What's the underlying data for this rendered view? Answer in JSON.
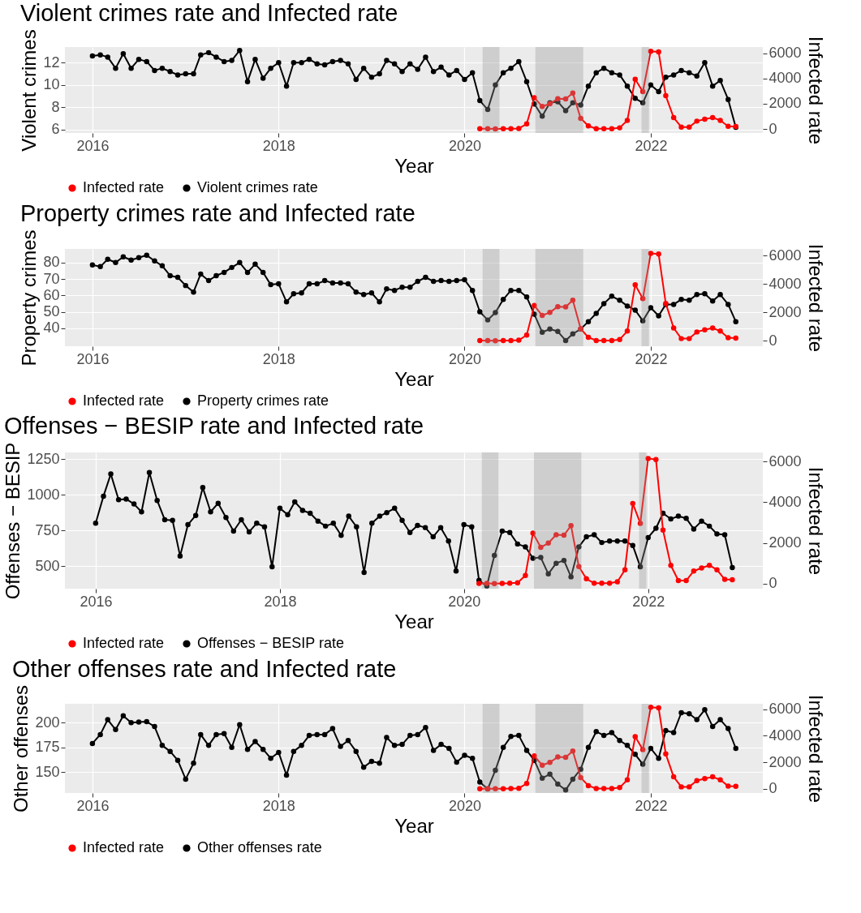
{
  "chart_data": [
    {
      "type": "line",
      "title": "Violent crimes rate and Infected rate",
      "xlabel": "Year",
      "ylabel": "Violent crimes",
      "y2label": "Infected rate",
      "x": [
        "2016-01",
        "2016-02",
        "2016-03",
        "2016-04",
        "2016-05",
        "2016-06",
        "2016-07",
        "2016-08",
        "2016-09",
        "2016-10",
        "2016-11",
        "2016-12",
        "2017-01",
        "2017-02",
        "2017-03",
        "2017-04",
        "2017-05",
        "2017-06",
        "2017-07",
        "2017-08",
        "2017-09",
        "2017-10",
        "2017-11",
        "2017-12",
        "2018-01",
        "2018-02",
        "2018-03",
        "2018-04",
        "2018-05",
        "2018-06",
        "2018-07",
        "2018-08",
        "2018-09",
        "2018-10",
        "2018-11",
        "2018-12",
        "2019-01",
        "2019-02",
        "2019-03",
        "2019-04",
        "2019-05",
        "2019-06",
        "2019-07",
        "2019-08",
        "2019-09",
        "2019-10",
        "2019-11",
        "2019-12",
        "2020-01",
        "2020-02",
        "2020-03",
        "2020-04",
        "2020-05",
        "2020-06",
        "2020-07",
        "2020-08",
        "2020-09",
        "2020-10",
        "2020-11",
        "2020-12",
        "2021-01",
        "2021-02",
        "2021-03",
        "2021-04",
        "2021-05",
        "2021-06",
        "2021-07",
        "2021-08",
        "2021-09",
        "2021-10",
        "2021-11",
        "2021-12",
        "2022-01",
        "2022-02",
        "2022-03",
        "2022-04",
        "2022-05",
        "2022-06",
        "2022-07",
        "2022-08",
        "2022-09",
        "2022-10",
        "2022-11",
        "2022-12"
      ],
      "series": [
        {
          "name": "Infected rate",
          "color": "#ff0000",
          "axis": "y2",
          "x": [
            "2020-03",
            "2020-04",
            "2020-05",
            "2020-06",
            "2020-07",
            "2020-08",
            "2020-09",
            "2020-10",
            "2020-11",
            "2020-12",
            "2021-01",
            "2021-02",
            "2021-03",
            "2021-04",
            "2021-05",
            "2021-06",
            "2021-07",
            "2021-08",
            "2021-09",
            "2021-10",
            "2021-11",
            "2021-12",
            "2022-01",
            "2022-02",
            "2022-03",
            "2022-04",
            "2022-05",
            "2022-06",
            "2022-07",
            "2022-08",
            "2022-09",
            "2022-10",
            "2022-11",
            "2022-12"
          ],
          "values": [
            10,
            10,
            0,
            10,
            20,
            40,
            400,
            2480,
            1780,
            1990,
            2400,
            2380,
            2850,
            840,
            240,
            20,
            20,
            20,
            90,
            680,
            3940,
            2960,
            6150,
            6100,
            2630,
            900,
            150,
            150,
            620,
            770,
            900,
            680,
            210,
            190
          ]
        },
        {
          "name": "Violent crimes rate",
          "color": "#000000",
          "values": [
            12.6,
            12.7,
            12.5,
            11.5,
            12.8,
            11.5,
            12.3,
            12.1,
            11.3,
            11.5,
            11.2,
            10.9,
            11.0,
            11.0,
            12.7,
            12.9,
            12.5,
            12.1,
            12.2,
            13.1,
            10.3,
            12.3,
            10.6,
            11.5,
            12.0,
            9.9,
            12.0,
            12.0,
            12.3,
            11.9,
            11.8,
            12.1,
            12.2,
            11.9,
            10.5,
            11.5,
            10.7,
            11.0,
            12.2,
            11.9,
            11.2,
            11.9,
            11.4,
            12.5,
            11.2,
            11.6,
            10.9,
            11.3,
            10.5,
            11.1,
            8.6,
            7.8,
            10.0,
            11.1,
            11.5,
            12.1,
            10.3,
            8.3,
            7.2,
            8.4,
            8.5,
            7.7,
            8.4,
            8.2,
            9.9,
            11.1,
            11.5,
            11.1,
            10.9,
            9.9,
            8.8,
            8.4,
            10.0,
            9.4,
            10.7,
            10.9,
            11.3,
            11.1,
            10.8,
            12.0,
            9.9,
            10.4,
            8.7,
            6.2
          ]
        }
      ],
      "xlim": [
        "2015-09-15",
        "2023-03-17"
      ],
      "xticks": [
        "2016",
        "2018",
        "2020",
        "2022"
      ],
      "ylim": [
        5.7,
        13.4
      ],
      "yticks": [
        6,
        8,
        10,
        12
      ],
      "y2lim": [
        -320,
        6490
      ],
      "y2ticks": [
        0,
        2000,
        4000,
        6000
      ],
      "bands": [
        {
          "axis": "x",
          "from": "2020-03-12",
          "to": "2020-05-17"
        },
        {
          "axis": "x",
          "from": "2020-10-05",
          "to": "2021-04-11"
        },
        {
          "axis": "x",
          "from": "2021-11-26",
          "to": "2021-12-25"
        }
      ],
      "grid": true,
      "legend": "bottom",
      "marker": "circle",
      "line_style": "solid"
    },
    {
      "type": "line",
      "title": "Property crimes rate and Infected rate",
      "xlabel": "Year",
      "ylabel": "Property crimes",
      "y2label": "Infected rate",
      "x": [
        "2016-01",
        "2016-02",
        "2016-03",
        "2016-04",
        "2016-05",
        "2016-06",
        "2016-07",
        "2016-08",
        "2016-09",
        "2016-10",
        "2016-11",
        "2016-12",
        "2017-01",
        "2017-02",
        "2017-03",
        "2017-04",
        "2017-05",
        "2017-06",
        "2017-07",
        "2017-08",
        "2017-09",
        "2017-10",
        "2017-11",
        "2017-12",
        "2018-01",
        "2018-02",
        "2018-03",
        "2018-04",
        "2018-05",
        "2018-06",
        "2018-07",
        "2018-08",
        "2018-09",
        "2018-10",
        "2018-11",
        "2018-12",
        "2019-01",
        "2019-02",
        "2019-03",
        "2019-04",
        "2019-05",
        "2019-06",
        "2019-07",
        "2019-08",
        "2019-09",
        "2019-10",
        "2019-11",
        "2019-12",
        "2020-01",
        "2020-02",
        "2020-03",
        "2020-04",
        "2020-05",
        "2020-06",
        "2020-07",
        "2020-08",
        "2020-09",
        "2020-10",
        "2020-11",
        "2020-12",
        "2021-01",
        "2021-02",
        "2021-03",
        "2021-04",
        "2021-05",
        "2021-06",
        "2021-07",
        "2021-08",
        "2021-09",
        "2021-10",
        "2021-11",
        "2021-12",
        "2022-01",
        "2022-02",
        "2022-03",
        "2022-04",
        "2022-05",
        "2022-06",
        "2022-07",
        "2022-08",
        "2022-09",
        "2022-10",
        "2022-11",
        "2022-12"
      ],
      "series": [
        {
          "name": "Infected rate",
          "color": "#ff0000",
          "axis": "y2",
          "x": [
            "2020-03",
            "2020-04",
            "2020-05",
            "2020-06",
            "2020-07",
            "2020-08",
            "2020-09",
            "2020-10",
            "2020-11",
            "2020-12",
            "2021-01",
            "2021-02",
            "2021-03",
            "2021-04",
            "2021-05",
            "2021-06",
            "2021-07",
            "2021-08",
            "2021-09",
            "2021-10",
            "2021-11",
            "2021-12",
            "2022-01",
            "2022-02",
            "2022-03",
            "2022-04",
            "2022-05",
            "2022-06",
            "2022-07",
            "2022-08",
            "2022-09",
            "2022-10",
            "2022-11",
            "2022-12"
          ],
          "values": [
            10,
            10,
            0,
            10,
            20,
            40,
            400,
            2480,
            1780,
            1990,
            2400,
            2380,
            2850,
            840,
            240,
            20,
            20,
            20,
            90,
            680,
            3940,
            2960,
            6150,
            6100,
            2630,
            900,
            150,
            150,
            620,
            770,
            900,
            680,
            210,
            190
          ]
        },
        {
          "name": "Property crimes rate",
          "color": "#000000",
          "values": [
            78.5,
            77.5,
            82,
            80,
            83.5,
            81.5,
            83,
            84.5,
            81,
            78,
            72,
            71,
            66,
            62,
            73,
            69,
            72,
            74,
            77,
            80,
            74,
            79,
            74,
            66.5,
            67,
            56,
            61,
            61.5,
            67,
            67,
            69,
            67.5,
            67.5,
            67,
            62,
            60.5,
            61.5,
            56,
            64,
            63,
            65,
            65,
            68.5,
            71,
            68.5,
            69,
            68.5,
            69,
            69.5,
            63,
            50,
            45,
            49.5,
            57.5,
            63,
            63,
            59,
            48.5,
            37.5,
            39.5,
            38,
            32.5,
            36.5,
            39.5,
            44,
            49,
            55,
            59.5,
            57,
            53.5,
            51,
            44.5,
            52.5,
            47.5,
            54.5,
            54.5,
            57.5,
            57,
            60.5,
            61,
            56.5,
            60.5,
            54.5,
            44
          ]
        }
      ],
      "xlim": [
        "2015-09-15",
        "2023-03-17"
      ],
      "xticks": [
        "2016",
        "2018",
        "2020",
        "2022"
      ],
      "ylim": [
        29,
        88.3
      ],
      "yticks": [
        40,
        50,
        60,
        70,
        80
      ],
      "y2lim": [
        -385,
        6460
      ],
      "y2ticks": [
        0,
        2000,
        4000,
        6000
      ],
      "bands": [
        {
          "axis": "x",
          "from": "2020-03-12",
          "to": "2020-05-17"
        },
        {
          "axis": "x",
          "from": "2020-10-05",
          "to": "2021-04-11"
        },
        {
          "axis": "x",
          "from": "2021-11-26",
          "to": "2021-12-25"
        }
      ],
      "grid": true,
      "legend": "bottom",
      "marker": "circle",
      "line_style": "solid"
    },
    {
      "type": "line",
      "title": "Offenses − BESIP rate and Infected rate",
      "xlabel": "Year",
      "ylabel": "Offenses − BESIP",
      "y2label": "Infected rate",
      "x": [
        "2016-01",
        "2016-02",
        "2016-03",
        "2016-04",
        "2016-05",
        "2016-06",
        "2016-07",
        "2016-08",
        "2016-09",
        "2016-10",
        "2016-11",
        "2016-12",
        "2017-01",
        "2017-02",
        "2017-03",
        "2017-04",
        "2017-05",
        "2017-06",
        "2017-07",
        "2017-08",
        "2017-09",
        "2017-10",
        "2017-11",
        "2017-12",
        "2018-01",
        "2018-02",
        "2018-03",
        "2018-04",
        "2018-05",
        "2018-06",
        "2018-07",
        "2018-08",
        "2018-09",
        "2018-10",
        "2018-11",
        "2018-12",
        "2019-01",
        "2019-02",
        "2019-03",
        "2019-04",
        "2019-05",
        "2019-06",
        "2019-07",
        "2019-08",
        "2019-09",
        "2019-10",
        "2019-11",
        "2019-12",
        "2020-01",
        "2020-02",
        "2020-03",
        "2020-04",
        "2020-05",
        "2020-06",
        "2020-07",
        "2020-08",
        "2020-09",
        "2020-10",
        "2020-11",
        "2020-12",
        "2021-01",
        "2021-02",
        "2021-03",
        "2021-04",
        "2021-05",
        "2021-06",
        "2021-07",
        "2021-08",
        "2021-09",
        "2021-10",
        "2021-11",
        "2021-12",
        "2022-01",
        "2022-02",
        "2022-03",
        "2022-04",
        "2022-05",
        "2022-06",
        "2022-07",
        "2022-08",
        "2022-09",
        "2022-10",
        "2022-11",
        "2022-12"
      ],
      "series": [
        {
          "name": "Infected rate",
          "color": "#ff0000",
          "axis": "y2",
          "x": [
            "2020-03",
            "2020-04",
            "2020-05",
            "2020-06",
            "2020-07",
            "2020-08",
            "2020-09",
            "2020-10",
            "2020-11",
            "2020-12",
            "2021-01",
            "2021-02",
            "2021-03",
            "2021-04",
            "2021-05",
            "2021-06",
            "2021-07",
            "2021-08",
            "2021-09",
            "2021-10",
            "2021-11",
            "2021-12",
            "2022-01",
            "2022-02",
            "2022-03",
            "2022-04",
            "2022-05",
            "2022-06",
            "2022-07",
            "2022-08",
            "2022-09",
            "2022-10",
            "2022-11",
            "2022-12"
          ],
          "values": [
            10,
            10,
            0,
            10,
            20,
            40,
            400,
            2480,
            1780,
            1990,
            2400,
            2380,
            2850,
            840,
            240,
            20,
            20,
            20,
            90,
            680,
            3940,
            2960,
            6150,
            6100,
            2630,
            900,
            150,
            150,
            620,
            770,
            900,
            680,
            210,
            190
          ]
        },
        {
          "name": "Offenses − BESIP rate",
          "color": "#000000",
          "values": [
            800,
            990,
            1145,
            965,
            970,
            935,
            880,
            1155,
            960,
            825,
            820,
            570,
            790,
            855,
            1050,
            880,
            940,
            840,
            745,
            825,
            740,
            800,
            775,
            495,
            905,
            860,
            950,
            890,
            870,
            815,
            780,
            800,
            715,
            850,
            775,
            455,
            800,
            850,
            875,
            905,
            820,
            735,
            785,
            770,
            705,
            770,
            675,
            465,
            790,
            775,
            400,
            360,
            575,
            745,
            735,
            655,
            635,
            555,
            560,
            445,
            520,
            540,
            425,
            635,
            705,
            720,
            665,
            675,
            675,
            675,
            645,
            495,
            700,
            765,
            870,
            830,
            850,
            835,
            760,
            815,
            780,
            725,
            720,
            490
          ]
        }
      ],
      "xlim": [
        "2015-09-01",
        "2023-04-01"
      ],
      "xticks": [
        "2016",
        "2018",
        "2020",
        "2022"
      ],
      "ylim": [
        342,
        1296
      ],
      "yticks": [
        500,
        750,
        1000,
        1250
      ],
      "y2lim": [
        -247,
        6444
      ],
      "y2ticks": [
        0,
        2000,
        4000,
        6000
      ],
      "bands": [
        {
          "axis": "x",
          "from": "2020-03-12",
          "to": "2020-05-17"
        },
        {
          "axis": "x",
          "from": "2020-10-05",
          "to": "2021-04-11"
        },
        {
          "axis": "x",
          "from": "2021-11-26",
          "to": "2021-12-25"
        }
      ],
      "grid": true,
      "legend": "bottom",
      "marker": "circle",
      "line_style": "solid"
    },
    {
      "type": "line",
      "title": "Other offenses rate and Infected rate",
      "xlabel": "Year",
      "ylabel": "Other offenses",
      "y2label": "Infected rate",
      "x": [
        "2016-01",
        "2016-02",
        "2016-03",
        "2016-04",
        "2016-05",
        "2016-06",
        "2016-07",
        "2016-08",
        "2016-09",
        "2016-10",
        "2016-11",
        "2016-12",
        "2017-01",
        "2017-02",
        "2017-03",
        "2017-04",
        "2017-05",
        "2017-06",
        "2017-07",
        "2017-08",
        "2017-09",
        "2017-10",
        "2017-11",
        "2017-12",
        "2018-01",
        "2018-02",
        "2018-03",
        "2018-04",
        "2018-05",
        "2018-06",
        "2018-07",
        "2018-08",
        "2018-09",
        "2018-10",
        "2018-11",
        "2018-12",
        "2019-01",
        "2019-02",
        "2019-03",
        "2019-04",
        "2019-05",
        "2019-06",
        "2019-07",
        "2019-08",
        "2019-09",
        "2019-10",
        "2019-11",
        "2019-12",
        "2020-01",
        "2020-02",
        "2020-03",
        "2020-04",
        "2020-05",
        "2020-06",
        "2020-07",
        "2020-08",
        "2020-09",
        "2020-10",
        "2020-11",
        "2020-12",
        "2021-01",
        "2021-02",
        "2021-03",
        "2021-04",
        "2021-05",
        "2021-06",
        "2021-07",
        "2021-08",
        "2021-09",
        "2021-10",
        "2021-11",
        "2021-12",
        "2022-01",
        "2022-02",
        "2022-03",
        "2022-04",
        "2022-05",
        "2022-06",
        "2022-07",
        "2022-08",
        "2022-09",
        "2022-10",
        "2022-11",
        "2022-12"
      ],
      "series": [
        {
          "name": "Infected rate",
          "color": "#ff0000",
          "axis": "y2",
          "x": [
            "2020-03",
            "2020-04",
            "2020-05",
            "2020-06",
            "2020-07",
            "2020-08",
            "2020-09",
            "2020-10",
            "2020-11",
            "2020-12",
            "2021-01",
            "2021-02",
            "2021-03",
            "2021-04",
            "2021-05",
            "2021-06",
            "2021-07",
            "2021-08",
            "2021-09",
            "2021-10",
            "2021-11",
            "2021-12",
            "2022-01",
            "2022-02",
            "2022-03",
            "2022-04",
            "2022-05",
            "2022-06",
            "2022-07",
            "2022-08",
            "2022-09",
            "2022-10",
            "2022-11",
            "2022-12"
          ],
          "values": [
            10,
            10,
            0,
            10,
            20,
            40,
            400,
            2480,
            1780,
            1990,
            2400,
            2380,
            2850,
            840,
            240,
            20,
            20,
            20,
            90,
            680,
            3940,
            2960,
            6150,
            6100,
            2630,
            900,
            150,
            150,
            620,
            770,
            900,
            680,
            210,
            190
          ]
        },
        {
          "name": "Other offenses rate",
          "color": "#000000",
          "values": [
            179,
            188,
            203,
            193,
            207,
            200,
            200.5,
            201,
            196,
            177,
            171,
            162,
            143,
            159,
            188,
            177,
            188,
            189,
            175,
            198,
            173,
            181,
            173,
            164,
            170,
            147,
            171,
            177,
            187,
            188,
            188,
            194,
            176,
            182,
            171,
            155,
            161,
            159,
            185,
            177,
            178,
            187,
            188,
            195,
            172,
            178,
            174,
            160,
            167,
            164,
            140,
            133,
            152,
            175,
            186,
            187,
            172,
            162,
            144,
            148,
            138,
            132,
            143,
            153,
            175,
            191,
            187,
            190,
            182,
            177,
            168,
            158,
            174,
            164,
            192,
            190,
            210,
            209,
            203,
            213,
            196,
            203,
            194,
            174
          ]
        }
      ],
      "xlim": [
        "2015-09-15",
        "2023-03-17"
      ],
      "xticks": [
        "2016",
        "2018",
        "2020",
        "2022"
      ],
      "ylim": [
        129,
        219
      ],
      "yticks": [
        150,
        175,
        200
      ],
      "y2lim": [
        -316,
        6410
      ],
      "y2ticks": [
        0,
        2000,
        4000,
        6000
      ],
      "bands": [
        {
          "axis": "x",
          "from": "2020-03-12",
          "to": "2020-05-17"
        },
        {
          "axis": "x",
          "from": "2020-10-05",
          "to": "2021-04-11"
        },
        {
          "axis": "x",
          "from": "2021-11-26",
          "to": "2021-12-25"
        }
      ],
      "grid": true,
      "legend": "bottom",
      "marker": "circle",
      "line_style": "solid"
    }
  ]
}
